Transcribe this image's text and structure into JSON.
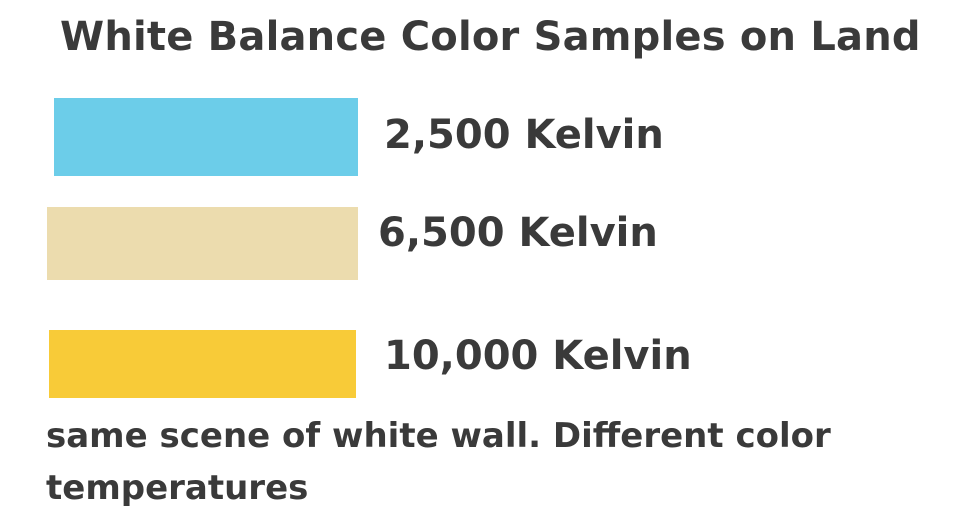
{
  "title": "White Balance Color Samples on Land",
  "samples": [
    {
      "label": "2,500 Kelvin",
      "color": "#6ccde9"
    },
    {
      "label": "6,500 Kelvin",
      "color": "#ecdcae"
    },
    {
      "label": "10,000 Kelvin",
      "color": "#f8cb38"
    }
  ],
  "caption": "same scene of white wall. Different color temperatures"
}
